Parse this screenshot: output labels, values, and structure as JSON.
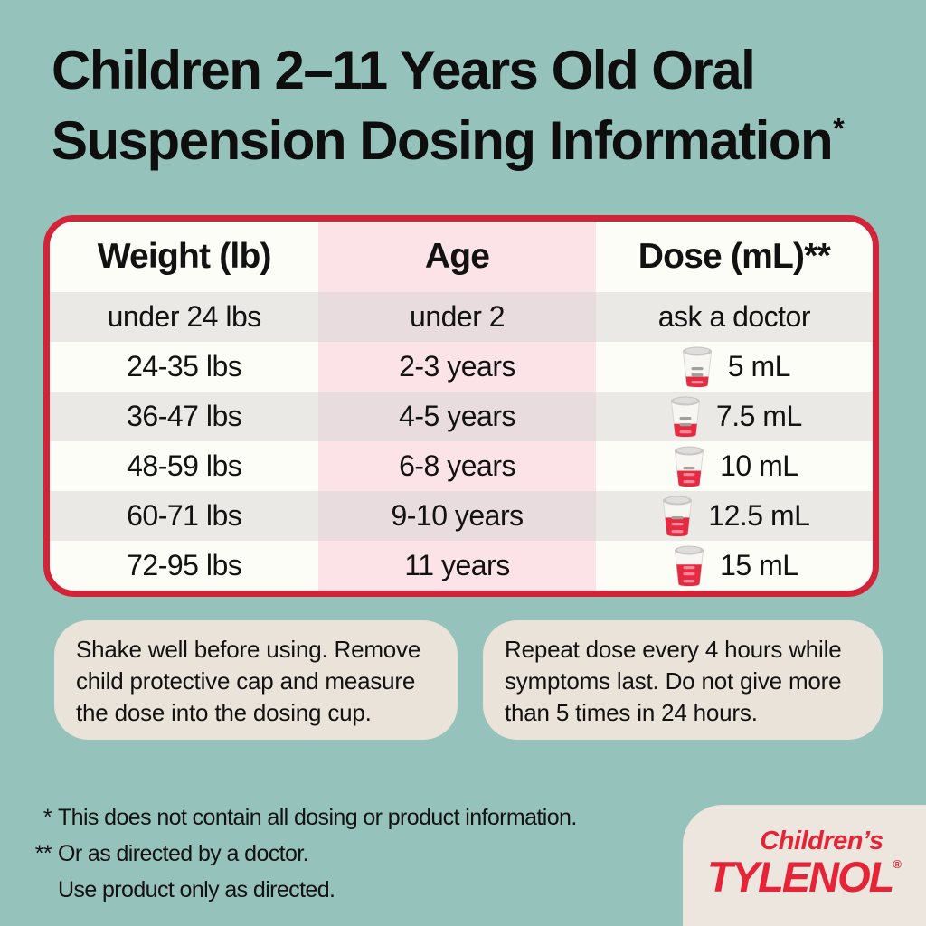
{
  "title": {
    "line1": "Children 2–11 Years Old Oral",
    "line2": "Suspension Dosing Information",
    "footnote_marker": "*"
  },
  "table": {
    "headers": [
      "Weight (lb)",
      "Age",
      "Dose (mL)**"
    ],
    "rows": [
      {
        "weight": "under 24 lbs",
        "age": "under 2",
        "dose": "ask a doctor",
        "has_cup": false,
        "cup_fill": 0
      },
      {
        "weight": "24-35 lbs",
        "age": "2-3 years",
        "dose": "5 mL",
        "has_cup": true,
        "cup_fill": 0.3
      },
      {
        "weight": "36-47 lbs",
        "age": "4-5 years",
        "dose": "7.5 mL",
        "has_cup": true,
        "cup_fill": 0.38
      },
      {
        "weight": "48-59 lbs",
        "age": "6-8 years",
        "dose": "10 mL",
        "has_cup": true,
        "cup_fill": 0.47
      },
      {
        "weight": "60-71 lbs",
        "age": "9-10 years",
        "dose": "12.5 mL",
        "has_cup": true,
        "cup_fill": 0.56
      },
      {
        "weight": "72-95 lbs",
        "age": "11 years",
        "dose": "15 mL",
        "has_cup": true,
        "cup_fill": 0.65
      }
    ]
  },
  "info_boxes": [
    {
      "text": "Shake well before using. Remove child protective cap and measure the dose into the dosing cup."
    },
    {
      "text": "Repeat dose every 4 hours while symptoms last. Do not give more than 5 times in 24 hours."
    }
  ],
  "footnotes": [
    {
      "marker": "*",
      "text": "This does not contain all dosing or product information."
    },
    {
      "marker": "**",
      "text": "Or as directed by a doctor."
    },
    {
      "marker": "",
      "text": "Use product only as directed."
    }
  ],
  "logo": {
    "line1": "Children’s",
    "line2": "TYLENOL",
    "registered": "®"
  },
  "colors": {
    "background_teal": "#95c2bb",
    "table_border_red": "#d22339",
    "age_column_pink": "#fce3e8",
    "stripe_gray": "#eae9e5",
    "info_box_beige": "#eae3da",
    "tylenol_red": "#e62337",
    "cup_liquid_red": "#e62a41"
  }
}
